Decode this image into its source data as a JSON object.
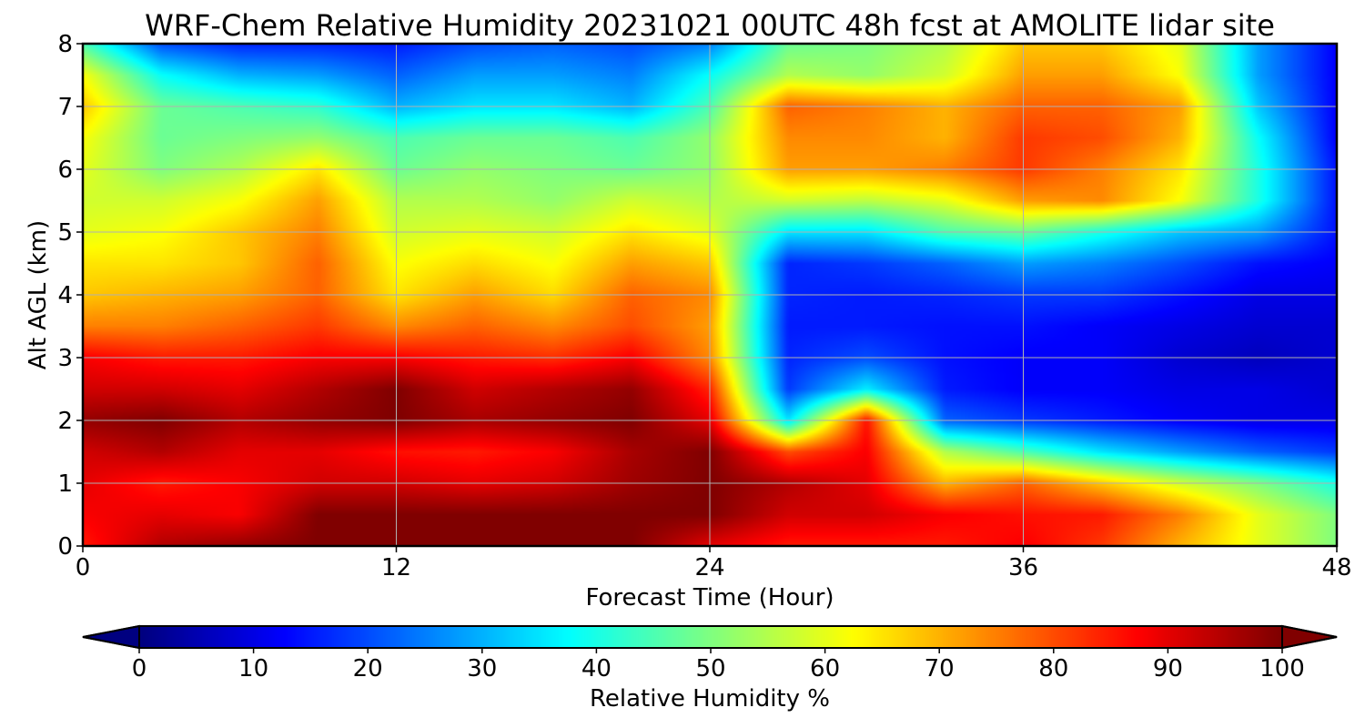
{
  "chart_data": {
    "type": "heatmap",
    "title": "WRF-Chem Relative Humidity 20231021 00UTC 48h fcst at AMOLITE lidar site",
    "xlabel": "Forecast Time (Hour)",
    "ylabel": "Alt AGL (km)",
    "xlim": [
      0,
      48
    ],
    "ylim": [
      0,
      8
    ],
    "xticks": [
      0,
      12,
      24,
      36,
      48
    ],
    "yticks": [
      0,
      1,
      2,
      3,
      4,
      5,
      6,
      7,
      8
    ],
    "grid": true,
    "colormap": "jet",
    "colorbar": {
      "label": "Relative Humidity %",
      "orientation": "horizontal",
      "location": "bottom",
      "min": 0,
      "max": 100,
      "ticks": [
        0,
        10,
        20,
        30,
        40,
        50,
        60,
        70,
        80,
        90,
        100
      ],
      "extend": "both"
    },
    "x": [
      0,
      3,
      6,
      9,
      12,
      15,
      18,
      21,
      24,
      27,
      30,
      33,
      36,
      39,
      42,
      45,
      48
    ],
    "y": [
      0,
      0.5,
      1,
      1.5,
      2,
      2.5,
      3,
      3.5,
      4,
      4.5,
      5,
      5.5,
      6,
      6.5,
      7,
      7.5,
      8
    ],
    "z": [
      [
        85,
        95,
        98,
        100,
        100,
        100,
        100,
        100,
        90,
        85,
        85,
        85,
        88,
        82,
        70,
        60,
        50
      ],
      [
        88,
        90,
        88,
        100,
        100,
        100,
        100,
        100,
        100,
        92,
        92,
        88,
        86,
        85,
        75,
        60,
        50
      ],
      [
        90,
        85,
        88,
        92,
        92,
        90,
        92,
        97,
        100,
        95,
        90,
        70,
        78,
        68,
        58,
        50,
        40
      ],
      [
        92,
        95,
        90,
        90,
        86,
        85,
        88,
        96,
        100,
        80,
        88,
        55,
        45,
        35,
        28,
        22,
        18
      ],
      [
        98,
        100,
        95,
        98,
        100,
        96,
        98,
        100,
        90,
        35,
        86,
        22,
        18,
        15,
        12,
        10,
        10
      ],
      [
        92,
        92,
        90,
        95,
        100,
        92,
        95,
        98,
        84,
        18,
        36,
        15,
        12,
        12,
        10,
        10,
        8
      ],
      [
        88,
        85,
        85,
        88,
        88,
        85,
        83,
        88,
        74,
        16,
        20,
        14,
        12,
        12,
        8,
        6,
        8
      ],
      [
        75,
        75,
        78,
        82,
        74,
        78,
        74,
        80,
        72,
        15,
        15,
        14,
        14,
        12,
        10,
        8,
        8
      ],
      [
        68,
        70,
        72,
        78,
        65,
        72,
        66,
        78,
        74,
        16,
        15,
        16,
        18,
        18,
        14,
        10,
        10
      ],
      [
        65,
        65,
        68,
        78,
        62,
        66,
        62,
        72,
        68,
        16,
        18,
        22,
        28,
        25,
        20,
        14,
        12
      ],
      [
        60,
        62,
        68,
        75,
        58,
        60,
        58,
        65,
        60,
        35,
        35,
        45,
        48,
        40,
        32,
        28,
        14
      ],
      [
        58,
        58,
        62,
        72,
        55,
        55,
        52,
        58,
        55,
        58,
        56,
        60,
        72,
        74,
        62,
        40,
        14
      ],
      [
        60,
        50,
        55,
        65,
        48,
        52,
        50,
        48,
        52,
        72,
        72,
        75,
        82,
        75,
        65,
        40,
        14
      ],
      [
        62,
        48,
        50,
        52,
        45,
        48,
        48,
        45,
        52,
        74,
        74,
        70,
        82,
        80,
        70,
        38,
        12
      ],
      [
        68,
        48,
        45,
        42,
        30,
        35,
        35,
        30,
        45,
        78,
        75,
        70,
        78,
        78,
        72,
        32,
        12
      ],
      [
        62,
        38,
        30,
        28,
        22,
        28,
        28,
        25,
        38,
        55,
        52,
        58,
        72,
        72,
        62,
        28,
        12
      ],
      [
        45,
        20,
        16,
        16,
        15,
        20,
        22,
        20,
        25,
        48,
        50,
        55,
        68,
        68,
        60,
        28,
        12
      ]
    ]
  }
}
